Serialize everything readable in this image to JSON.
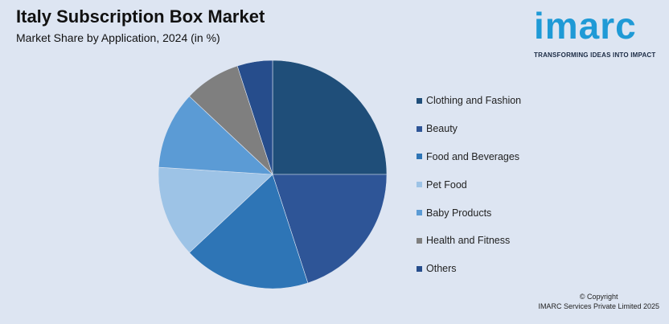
{
  "header": {
    "title": "Italy Subscription Box Market",
    "subtitle": "Market Share by Application, 2024 (in %)"
  },
  "logo": {
    "word": "imarc",
    "tagline": "TRANSFORMING IDEAS INTO IMPACT"
  },
  "footer": {
    "line1": "© Copyright",
    "line2": "IMARC Services Private Limited 2025"
  },
  "chart_data": {
    "type": "pie",
    "title": "Italy Subscription Box Market",
    "subtitle": "Market Share by Application, 2024 (in %)",
    "legend_position": "right",
    "categories": [
      "Clothing and Fashion",
      "Beauty",
      "Food and Beverages",
      "Pet Food",
      "Baby Products",
      "Health and Fitness",
      "Others"
    ],
    "values": [
      25,
      20,
      18,
      13,
      11,
      8,
      5
    ],
    "colors": [
      "#1f4e79",
      "#2e5597",
      "#2e75b6",
      "#9dc3e6",
      "#5b9bd5",
      "#7f7f7f",
      "#264d8c"
    ]
  }
}
